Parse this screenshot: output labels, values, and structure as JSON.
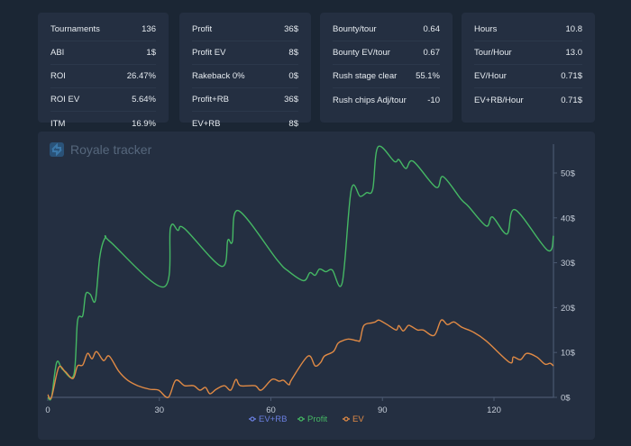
{
  "stats": {
    "card1": [
      {
        "label": "Tournaments",
        "value": "136"
      },
      {
        "label": "ABI",
        "value": "1$"
      },
      {
        "label": "ROI",
        "value": "26.47%"
      },
      {
        "label": "ROI EV",
        "value": "5.64%"
      },
      {
        "label": "ITM",
        "value": "16.9%"
      }
    ],
    "card2": [
      {
        "label": "Profit",
        "value": "36$"
      },
      {
        "label": "Profit EV",
        "value": "8$"
      },
      {
        "label": "Rakeback 0%",
        "value": "0$"
      },
      {
        "label": "Profit+RB",
        "value": "36$"
      },
      {
        "label": "EV+RB",
        "value": "8$"
      }
    ],
    "card3": [
      {
        "label": "Bounty/tour",
        "value": "0.64"
      },
      {
        "label": "Bounty EV/tour",
        "value": "0.67"
      },
      {
        "label": "Rush stage clear",
        "value": "55.1%"
      },
      {
        "label": "Rush chips Adj/tour",
        "value": "-10"
      }
    ],
    "card4": [
      {
        "label": "Hours",
        "value": "10.8"
      },
      {
        "label": "Tour/Hour",
        "value": "13.0"
      },
      {
        "label": "EV/Hour",
        "value": "0.71$"
      },
      {
        "label": "EV+RB/Hour",
        "value": "0.71$"
      }
    ]
  },
  "brand": {
    "title": "Royale tracker",
    "icon": "royale-logo-icon"
  },
  "colors": {
    "profit": "#45b864",
    "ev": "#e08a45",
    "ev_rb": "#6a7fe0",
    "axis": "#4a5870",
    "tick_text": "#c5cdd8"
  },
  "chart_data": {
    "type": "line",
    "title": "",
    "xlabel": "",
    "ylabel": "",
    "xlim": [
      0,
      136
    ],
    "ylim": [
      0,
      56
    ],
    "x_ticks": [
      0,
      30,
      60,
      90,
      120
    ],
    "x_tick_labels": [
      "0",
      "30",
      "60",
      "90",
      "120"
    ],
    "y_ticks": [
      0,
      10,
      20,
      30,
      40,
      50
    ],
    "y_tick_labels": [
      "0$",
      "10$",
      "20$",
      "30$",
      "40$",
      "50$"
    ],
    "y_axis_side": "right",
    "legend_position": "bottom-center",
    "grid": false,
    "series": [
      {
        "name": "EV+RB",
        "color_key": "ev_rb",
        "points": []
      },
      {
        "name": "Profit",
        "color_key": "profit",
        "points": [
          [
            0,
            0
          ],
          [
            1,
            0
          ],
          [
            2.4,
            7.8
          ],
          [
            4,
            6.2
          ],
          [
            7,
            5
          ],
          [
            8,
            17
          ],
          [
            9.4,
            18.2
          ],
          [
            10.2,
            23
          ],
          [
            11.4,
            23
          ],
          [
            12.8,
            21.6
          ],
          [
            14,
            31.4
          ],
          [
            15.5,
            35.6
          ],
          [
            16.9,
            34.6
          ],
          [
            31.2,
            24.6
          ],
          [
            33,
            37.8
          ],
          [
            35,
            37.2
          ],
          [
            36.8,
            37.6
          ],
          [
            46.7,
            29.2
          ],
          [
            48.4,
            35
          ],
          [
            49.6,
            34.6
          ],
          [
            51.3,
            41.6
          ],
          [
            61.7,
            30.6
          ],
          [
            64.6,
            28.2
          ],
          [
            68.8,
            26
          ],
          [
            70.5,
            27.8
          ],
          [
            71.9,
            27.2
          ],
          [
            73.1,
            28.6
          ],
          [
            74.8,
            28
          ],
          [
            76.5,
            28.4
          ],
          [
            79.2,
            25.6
          ],
          [
            81.6,
            46.2
          ],
          [
            84,
            44.8
          ],
          [
            85.7,
            45.6
          ],
          [
            87.4,
            46.4
          ],
          [
            88.8,
            55.8
          ],
          [
            93.2,
            52.6
          ],
          [
            94.4,
            53
          ],
          [
            96.3,
            51
          ],
          [
            98.3,
            52.6
          ],
          [
            104.4,
            46.8
          ],
          [
            106.3,
            49.2
          ],
          [
            111.1,
            44.2
          ],
          [
            113.1,
            42.6
          ],
          [
            117.9,
            38.2
          ],
          [
            119.6,
            40.2
          ],
          [
            123.5,
            36.4
          ],
          [
            125.7,
            41.8
          ],
          [
            134.4,
            32.8
          ],
          [
            136,
            36
          ]
        ]
      },
      {
        "name": "EV",
        "color_key": "ev",
        "points": [
          [
            0,
            0.6
          ],
          [
            1,
            0
          ],
          [
            2.9,
            6.6
          ],
          [
            4.6,
            5.8
          ],
          [
            6.8,
            4.2
          ],
          [
            8,
            7
          ],
          [
            9.4,
            7.2
          ],
          [
            10.7,
            9.8
          ],
          [
            11.9,
            8.6
          ],
          [
            13.1,
            10.2
          ],
          [
            15,
            8.2
          ],
          [
            16.5,
            9.2
          ],
          [
            19.1,
            5.8
          ],
          [
            21.5,
            3.8
          ],
          [
            24.2,
            2.6
          ],
          [
            27.4,
            1.8
          ],
          [
            29.8,
            1.6
          ],
          [
            32.4,
            0
          ],
          [
            34.4,
            3.8
          ],
          [
            36.8,
            2.6
          ],
          [
            39.2,
            2.6
          ],
          [
            40.9,
            1.6
          ],
          [
            42.4,
            2.2
          ],
          [
            43.6,
            0.8
          ],
          [
            45.3,
            1.8
          ],
          [
            47.5,
            2.6
          ],
          [
            49.2,
            1.6
          ],
          [
            50.6,
            4
          ],
          [
            51.8,
            2.6
          ],
          [
            55.7,
            2.6
          ],
          [
            57.4,
            1.6
          ],
          [
            60.3,
            4
          ],
          [
            62.2,
            3.6
          ],
          [
            63.4,
            3.8
          ],
          [
            64.9,
            2.8
          ],
          [
            65.6,
            4
          ],
          [
            70,
            9.2
          ],
          [
            71.9,
            7
          ],
          [
            73.4,
            7.8
          ],
          [
            74.4,
            9.2
          ],
          [
            76.8,
            10.2
          ],
          [
            78,
            12
          ],
          [
            79.2,
            12.6
          ],
          [
            80.9,
            13
          ],
          [
            83.3,
            12.6
          ],
          [
            84,
            12.8
          ],
          [
            85,
            16
          ],
          [
            87.2,
            16.6
          ],
          [
            88.1,
            16.8
          ],
          [
            89.1,
            17.2
          ],
          [
            91.3,
            16.2
          ],
          [
            93.7,
            15
          ],
          [
            94.4,
            16
          ],
          [
            95.6,
            14.8
          ],
          [
            96.9,
            16
          ],
          [
            97.8,
            15.8
          ],
          [
            99.5,
            15
          ],
          [
            101,
            15
          ],
          [
            103.9,
            13.8
          ],
          [
            105.8,
            17.2
          ],
          [
            107.5,
            16.2
          ],
          [
            109.2,
            16.8
          ],
          [
            111.4,
            15.6
          ],
          [
            114.3,
            14.6
          ],
          [
            117.9,
            12.6
          ],
          [
            124.2,
            7.8
          ],
          [
            125.2,
            9
          ],
          [
            127.1,
            8.4
          ],
          [
            128.8,
            9.8
          ],
          [
            131.5,
            9
          ],
          [
            133.7,
            7.4
          ],
          [
            135.1,
            7.6
          ],
          [
            136,
            7
          ]
        ]
      }
    ]
  }
}
